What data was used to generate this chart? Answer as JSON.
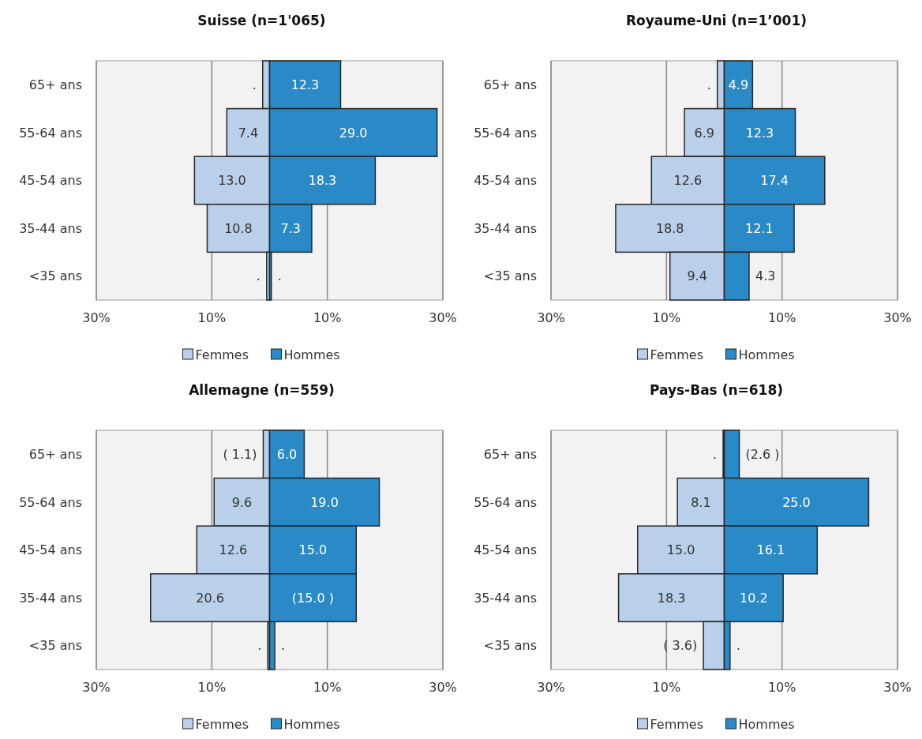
{
  "chart_data": [
    {
      "type": "bar",
      "orientation": "horizontal",
      "title": "Suisse (n=1'065)",
      "categories": [
        "65+ ans",
        "55-64 ans",
        "45-54 ans",
        "35-44 ans",
        "<35 ans"
      ],
      "xlim": [
        -30,
        30
      ],
      "xticks": [
        {
          "value": -30,
          "label": "30%"
        },
        {
          "value": -10,
          "label": "10%"
        },
        {
          "value": 10,
          "label": "10%"
        },
        {
          "value": 30,
          "label": "30%"
        }
      ],
      "grid": "x",
      "legend": "bottom",
      "series": [
        {
          "name": "Femmes",
          "color": "#b9cfea",
          "values": [
            1.2,
            7.4,
            13.0,
            10.8,
            0.5
          ],
          "base": [
            -1.2,
            -7.4,
            -13.0,
            -10.8,
            -0.5
          ],
          "value_labels": [
            ".",
            "7.4",
            "13.0",
            "10.8",
            "."
          ]
        },
        {
          "name": "Hommes",
          "color": "#2a8ac8",
          "values": [
            12.3,
            29.0,
            18.3,
            7.3,
            0.3
          ],
          "value_labels": [
            "12.3",
            "29.0",
            "18.3",
            "7.3",
            "."
          ]
        }
      ]
    },
    {
      "type": "bar",
      "orientation": "horizontal",
      "title": "Royaume-Uni (n=1’001)",
      "categories": [
        "65+ ans",
        "55-64 ans",
        "45-54 ans",
        "35-44 ans",
        "<35 ans"
      ],
      "xlim": [
        -30,
        30
      ],
      "xticks": [
        {
          "value": -30,
          "label": "30%"
        },
        {
          "value": -10,
          "label": "10%"
        },
        {
          "value": 10,
          "label": "10%"
        },
        {
          "value": 30,
          "label": "30%"
        }
      ],
      "grid": "x",
      "legend": "bottom",
      "series": [
        {
          "name": "Femmes",
          "color": "#b9cfea",
          "values": [
            1.2,
            6.9,
            12.6,
            18.8,
            9.4
          ],
          "base": [
            -1.2,
            -6.9,
            -12.6,
            -18.8,
            -9.4
          ],
          "value_labels": [
            ".",
            "6.9",
            "12.6",
            "18.8",
            "9.4"
          ]
        },
        {
          "name": "Hommes",
          "color": "#2a8ac8",
          "values": [
            4.9,
            12.3,
            17.4,
            12.1,
            4.3
          ],
          "value_labels": [
            "4.9",
            "12.3",
            "17.4",
            "12.1",
            "4.3"
          ]
        }
      ]
    },
    {
      "type": "bar",
      "orientation": "horizontal",
      "title": "Allemagne (n=559)",
      "categories": [
        "65+ ans",
        "55-64 ans",
        "45-54 ans",
        "35-44 ans",
        "<35 ans"
      ],
      "xlim": [
        -30,
        30
      ],
      "xticks": [
        {
          "value": -30,
          "label": "30%"
        },
        {
          "value": -10,
          "label": "10%"
        },
        {
          "value": 10,
          "label": "10%"
        },
        {
          "value": 30,
          "label": "30%"
        }
      ],
      "grid": "x",
      "legend": "bottom",
      "series": [
        {
          "name": "Femmes",
          "color": "#b9cfea",
          "values": [
            1.1,
            9.6,
            12.6,
            20.6,
            0.3
          ],
          "base": [
            -1.1,
            -9.6,
            -12.6,
            -20.6,
            -0.3
          ],
          "value_labels": [
            "( 1.1)",
            "9.6",
            "12.6",
            "20.6",
            "."
          ]
        },
        {
          "name": "Hommes",
          "color": "#2a8ac8",
          "values": [
            6.0,
            19.0,
            15.0,
            15.0,
            0.9
          ],
          "value_labels": [
            "6.0",
            "19.0",
            "15.0",
            "(15.0 )",
            "."
          ]
        }
      ]
    },
    {
      "type": "bar",
      "orientation": "horizontal",
      "title": "Pays-Bas (n=618)",
      "categories": [
        "65+ ans",
        "55-64 ans",
        "45-54 ans",
        "35-44 ans",
        "<35 ans"
      ],
      "xlim": [
        -30,
        30
      ],
      "xticks": [
        {
          "value": -30,
          "label": "30%"
        },
        {
          "value": -10,
          "label": "10%"
        },
        {
          "value": 10,
          "label": "10%"
        },
        {
          "value": 30,
          "label": "30%"
        }
      ],
      "grid": "x",
      "legend": "bottom",
      "series": [
        {
          "name": "Femmes",
          "color": "#b9cfea",
          "values": [
            0.2,
            8.1,
            15.0,
            18.3,
            3.6
          ],
          "base": [
            -0.2,
            -8.1,
            -15.0,
            -18.3,
            -3.6
          ],
          "value_labels": [
            ".",
            "8.1",
            "15.0",
            "18.3",
            "( 3.6)"
          ]
        },
        {
          "name": "Hommes",
          "color": "#2a8ac8",
          "values": [
            2.6,
            25.0,
            16.1,
            10.2,
            1.0
          ],
          "value_labels": [
            "(2.6 )",
            "25.0",
            "16.1",
            "10.2",
            "."
          ]
        }
      ]
    }
  ]
}
